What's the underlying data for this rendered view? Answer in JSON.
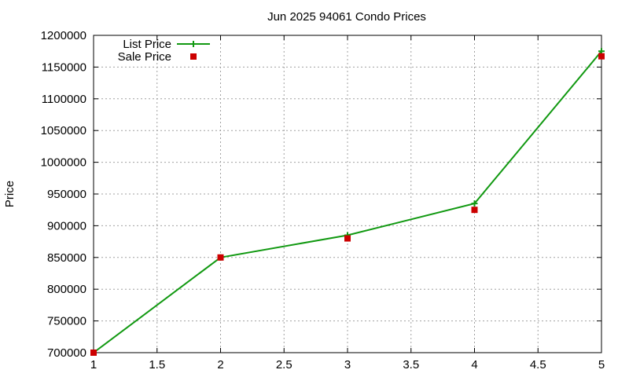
{
  "chart_data": {
    "type": "line",
    "title": "Jun 2025 94061 Condo Prices",
    "xlabel": "",
    "ylabel": "Price",
    "xlim": [
      1,
      5
    ],
    "ylim": [
      700000,
      1200000
    ],
    "x_ticks": [
      "1",
      "1.5",
      "2",
      "2.5",
      "3",
      "3.5",
      "4",
      "4.5",
      "5"
    ],
    "y_ticks": [
      "700000",
      "750000",
      "800000",
      "850000",
      "900000",
      "950000",
      "1000000",
      "1050000",
      "1100000",
      "1150000",
      "1200000"
    ],
    "grid": true,
    "legend_position": "top-left",
    "series": [
      {
        "name": "List Price",
        "style": "line-plus",
        "color": "#119911",
        "x": [
          1,
          2,
          3,
          4,
          5
        ],
        "y": [
          700000,
          850000,
          885000,
          935000,
          1175000
        ]
      },
      {
        "name": "Sale Price",
        "style": "square-points",
        "color": "#cc0000",
        "x": [
          1,
          2,
          3,
          4,
          5
        ],
        "y": [
          700000,
          850000,
          880000,
          925000,
          1167000
        ]
      }
    ]
  }
}
